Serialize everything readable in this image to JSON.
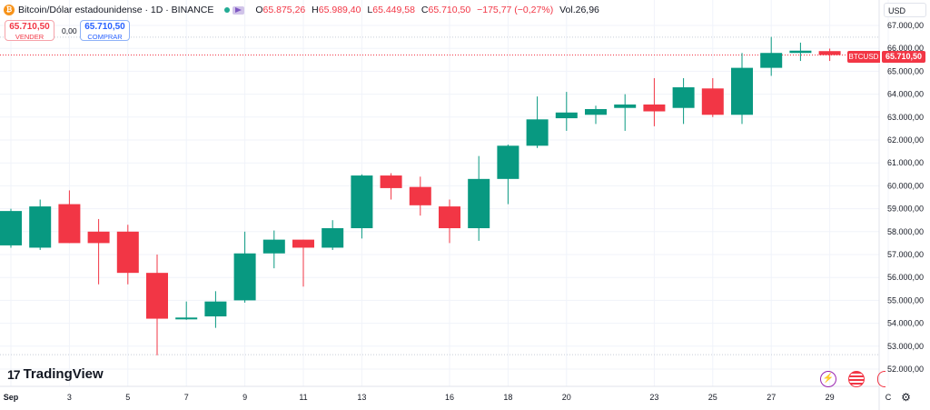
{
  "header": {
    "coin_icon": "bitcoin-icon",
    "symbol_title": "Bitcoin/Dólar estadounidense · 1D · BINANCE",
    "ohlc": {
      "o_label": "O",
      "o_value": "65.875,26",
      "h_label": "H",
      "h_value": "65.989,40",
      "l_label": "L",
      "l_value": "65.449,58",
      "c_label": "C",
      "c_value": "65.710,50",
      "change": "−175,77 (−0,27%)",
      "vol": "Vol.26,96"
    }
  },
  "trade": {
    "sell_price": "65.710,50",
    "sell_label": "VENDER",
    "spread": "0,00",
    "buy_price": "65.710,50",
    "buy_label": "COMPRAR"
  },
  "currency": "USD",
  "price_tag": {
    "symbol": "BTCUSD",
    "value": "65.710,50"
  },
  "brand": {
    "name": "TradingView"
  },
  "colors": {
    "up": "#089981",
    "down": "#f23645",
    "grid": "#f0f3fa"
  },
  "chart_data": {
    "type": "candlestick",
    "symbol": "BTCUSD",
    "interval": "1D",
    "ylim": [
      51800,
      67300
    ],
    "y_ticks": [
      52000,
      53000,
      54000,
      55000,
      56000,
      57000,
      58000,
      59000,
      60000,
      61000,
      62000,
      63000,
      64000,
      65000,
      66000,
      67000
    ],
    "y_tick_labels": [
      "52.000,00",
      "53.000,00",
      "54.000,00",
      "55.000,00",
      "56.000,00",
      "57.000,00",
      "58.000,00",
      "59.000,00",
      "60.000,00",
      "61.000,00",
      "62.000,00",
      "63.000,00",
      "64.000,00",
      "65.000,00",
      "66.000,00",
      "67.000,00"
    ],
    "x_tick_labels": [
      {
        "day": 1,
        "label": "Sep"
      },
      {
        "day": 3,
        "label": "3"
      },
      {
        "day": 5,
        "label": "5"
      },
      {
        "day": 7,
        "label": "7"
      },
      {
        "day": 9,
        "label": "9"
      },
      {
        "day": 11,
        "label": "11"
      },
      {
        "day": 13,
        "label": "13"
      },
      {
        "day": 16,
        "label": "16"
      },
      {
        "day": 18,
        "label": "18"
      },
      {
        "day": 20,
        "label": "20"
      },
      {
        "day": 23,
        "label": "23"
      },
      {
        "day": 25,
        "label": "25"
      },
      {
        "day": 27,
        "label": "27"
      },
      {
        "day": 29,
        "label": "29"
      },
      {
        "day": 31,
        "label": "C"
      }
    ],
    "last_price": 65710.5,
    "high_line": 66490,
    "low_line": 52630,
    "candles": [
      {
        "x": 0.4,
        "o": 57400,
        "h": 59000,
        "l": 57300,
        "c": 58900
      },
      {
        "x": 1.4,
        "o": 57300,
        "h": 59400,
        "l": 57200,
        "c": 59100
      },
      {
        "x": 2.4,
        "o": 59200,
        "h": 59800,
        "l": 57500,
        "c": 57500
      },
      {
        "x": 3.4,
        "o": 58000,
        "h": 58550,
        "l": 55700,
        "c": 57500
      },
      {
        "x": 4.4,
        "o": 58000,
        "h": 58300,
        "l": 55700,
        "c": 56200
      },
      {
        "x": 5.4,
        "o": 56200,
        "h": 57000,
        "l": 52600,
        "c": 54200
      },
      {
        "x": 6.4,
        "o": 54200,
        "h": 54950,
        "l": 54150,
        "c": 54250
      },
      {
        "x": 7.4,
        "o": 54300,
        "h": 55400,
        "l": 53800,
        "c": 54950
      },
      {
        "x": 8.4,
        "o": 55000,
        "h": 58000,
        "l": 54900,
        "c": 57050
      },
      {
        "x": 9.4,
        "o": 57050,
        "h": 58050,
        "l": 56400,
        "c": 57650
      },
      {
        "x": 10.4,
        "o": 57650,
        "h": 57650,
        "l": 55600,
        "c": 57300
      },
      {
        "x": 11.4,
        "o": 57300,
        "h": 58500,
        "l": 57200,
        "c": 58150
      },
      {
        "x": 12.4,
        "o": 58150,
        "h": 60500,
        "l": 57700,
        "c": 60450
      },
      {
        "x": 13.4,
        "o": 60450,
        "h": 60550,
        "l": 59400,
        "c": 59900
      },
      {
        "x": 14.4,
        "o": 59950,
        "h": 60400,
        "l": 58700,
        "c": 59150
      },
      {
        "x": 15.4,
        "o": 59100,
        "h": 59400,
        "l": 57500,
        "c": 58150
      },
      {
        "x": 16.4,
        "o": 58150,
        "h": 61300,
        "l": 57600,
        "c": 60300
      },
      {
        "x": 17.4,
        "o": 60300,
        "h": 61800,
        "l": 59200,
        "c": 61750
      },
      {
        "x": 18.4,
        "o": 61750,
        "h": 63900,
        "l": 61650,
        "c": 62900
      },
      {
        "x": 19.4,
        "o": 62950,
        "h": 64100,
        "l": 62400,
        "c": 63200
      },
      {
        "x": 20.4,
        "o": 63100,
        "h": 63500,
        "l": 62700,
        "c": 63350
      },
      {
        "x": 21.4,
        "o": 63400,
        "h": 64000,
        "l": 62400,
        "c": 63550
      },
      {
        "x": 22.4,
        "o": 63550,
        "h": 64700,
        "l": 62600,
        "c": 63250
      },
      {
        "x": 23.4,
        "o": 63400,
        "h": 64700,
        "l": 62700,
        "c": 64300
      },
      {
        "x": 24.4,
        "o": 64250,
        "h": 64700,
        "l": 63000,
        "c": 63100
      },
      {
        "x": 25.4,
        "o": 63100,
        "h": 65800,
        "l": 62700,
        "c": 65150
      },
      {
        "x": 26.4,
        "o": 65150,
        "h": 66500,
        "l": 64800,
        "c": 65800
      },
      {
        "x": 27.4,
        "o": 65800,
        "h": 66250,
        "l": 65450,
        "c": 65900
      },
      {
        "x": 28.4,
        "o": 65880,
        "h": 65990,
        "l": 65450,
        "c": 65710
      }
    ]
  }
}
